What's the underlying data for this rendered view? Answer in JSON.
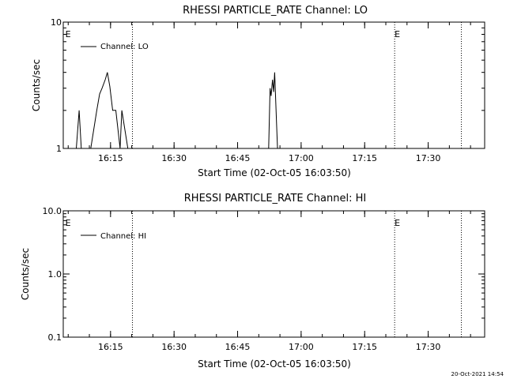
{
  "timestamp": "20-Oct-2021 14:54",
  "chart_data": [
    {
      "type": "line",
      "title": "RHESSI PARTICLE_RATE Channel: LO",
      "xlabel": "Start Time (02-Oct-05 16:03:50)",
      "ylabel": "Counts/sec",
      "yscale": "log",
      "ylim": [
        1,
        10
      ],
      "yticks": [
        {
          "value": 1,
          "label": "1"
        },
        {
          "value": 10,
          "label": "10"
        }
      ],
      "xlim": [
        "16:03:50",
        "17:43:20"
      ],
      "xticks": [
        "16:15",
        "16:30",
        "16:45",
        "17:00",
        "17:15",
        "17:30"
      ],
      "legend": {
        "entry": "Channel: LO",
        "placement": "top-left"
      },
      "event_markers": [
        {
          "time": "16:04:20",
          "label": "E"
        },
        {
          "time": "17:22:05",
          "label": "E"
        }
      ],
      "dotted_lines": [
        "16:20:10",
        "17:22:05",
        "17:37:50"
      ],
      "series": [
        {
          "name": "Channel: LO",
          "x": [
            "16:06:55",
            "16:07:35",
            "16:08:05",
            "16:10:20",
            "16:11:45",
            "16:12:25",
            "16:13:00",
            "16:13:45",
            "16:14:15",
            "16:14:50",
            "16:15:30",
            "16:16:15",
            "16:17:15",
            "16:17:40",
            "16:19:05",
            "16:52:20",
            "16:52:40",
            "16:52:55",
            "16:53:15",
            "16:53:30",
            "16:53:45",
            "16:54:10",
            "16:54:25"
          ],
          "y": [
            1.0,
            2.0,
            1.0,
            1.0,
            2.0,
            2.7,
            3.0,
            3.5,
            4.0,
            3.1,
            2.0,
            2.0,
            1.0,
            2.0,
            1.0,
            1.0,
            3.0,
            2.6,
            3.5,
            2.8,
            4.0,
            1.7,
            1.0
          ]
        }
      ]
    },
    {
      "type": "line",
      "title": "RHESSI PARTICLE_RATE Channel: HI",
      "xlabel": "Start Time (02-Oct-05 16:03:50)",
      "ylabel": "Counts/sec",
      "yscale": "log",
      "ylim": [
        0.1,
        10
      ],
      "yticks": [
        {
          "value": 0.1,
          "label": "0.1"
        },
        {
          "value": 1,
          "label": "1.0"
        },
        {
          "value": 10,
          "label": "10.0"
        }
      ],
      "xlim": [
        "16:03:50",
        "17:43:20"
      ],
      "xticks": [
        "16:15",
        "16:30",
        "16:45",
        "17:00",
        "17:15",
        "17:30"
      ],
      "legend": {
        "entry": "Channel: HI",
        "placement": "top-left"
      },
      "event_markers": [
        {
          "time": "16:04:20",
          "label": "E"
        },
        {
          "time": "17:22:05",
          "label": "E"
        }
      ],
      "dotted_lines": [
        "16:20:10",
        "17:22:05",
        "17:37:50"
      ],
      "series": [
        {
          "name": "Channel: HI",
          "x": [],
          "y": []
        }
      ]
    }
  ]
}
